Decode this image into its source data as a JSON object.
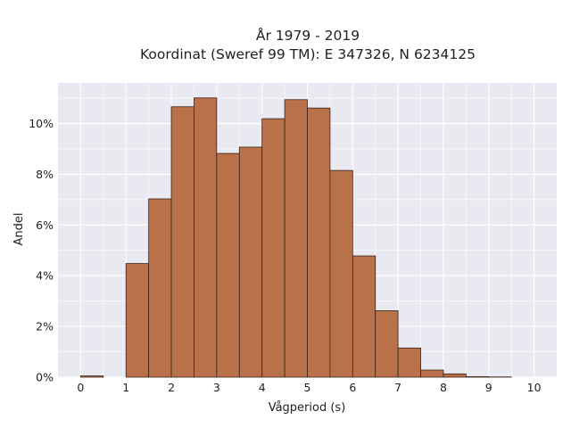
{
  "chart_data": {
    "type": "bar",
    "title_line1": "År 1979 - 2019",
    "title_line2": "Koordinat (Sweref 99 TM): E 347326, N 6234125",
    "xlabel": "Vågperiod (s)",
    "ylabel": "Andel",
    "xlim": [
      -0.5,
      10.5
    ],
    "ylim": [
      0,
      11.6
    ],
    "x_ticks": [
      0,
      1,
      2,
      3,
      4,
      5,
      6,
      7,
      8,
      9,
      10
    ],
    "y_ticks": [
      0,
      2,
      4,
      6,
      8,
      10
    ],
    "y_tick_labels": [
      "0%",
      "2%",
      "4%",
      "6%",
      "8%",
      "10%"
    ],
    "bin_width": 0.5,
    "bins": [
      {
        "x0": 0.0,
        "value": 0.05
      },
      {
        "x0": 0.5,
        "value": 0.0
      },
      {
        "x0": 1.0,
        "value": 4.48
      },
      {
        "x0": 1.5,
        "value": 7.03
      },
      {
        "x0": 2.0,
        "value": 10.66
      },
      {
        "x0": 2.5,
        "value": 11.01
      },
      {
        "x0": 3.0,
        "value": 8.82
      },
      {
        "x0": 3.5,
        "value": 9.07
      },
      {
        "x0": 4.0,
        "value": 10.19
      },
      {
        "x0": 4.5,
        "value": 10.94
      },
      {
        "x0": 5.0,
        "value": 10.61
      },
      {
        "x0": 5.5,
        "value": 8.15
      },
      {
        "x0": 6.0,
        "value": 4.78
      },
      {
        "x0": 6.5,
        "value": 2.62
      },
      {
        "x0": 7.0,
        "value": 1.15
      },
      {
        "x0": 7.5,
        "value": 0.28
      },
      {
        "x0": 8.0,
        "value": 0.13
      },
      {
        "x0": 8.5,
        "value": 0.02
      },
      {
        "x0": 9.0,
        "value": 0.01
      }
    ],
    "colors": {
      "bar_fill": "#b9714a",
      "bar_stroke": "#3b2418",
      "plot_bg": "#e9e9f1",
      "grid": "#ffffff"
    },
    "grid": true
  }
}
